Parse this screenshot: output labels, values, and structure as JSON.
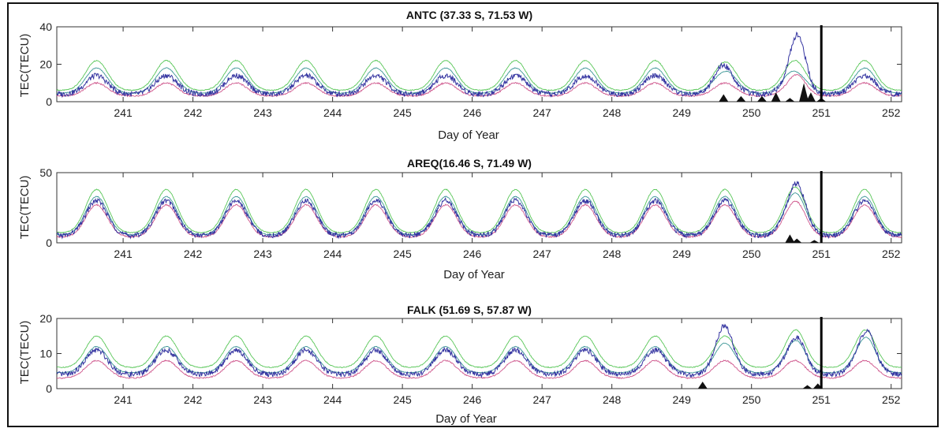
{
  "figure": {
    "panels": [
      {
        "title": "ANTC (37.33 S, 71.53 W)",
        "xlabel": "Day of Year",
        "ylabel": "TEC(TECU)"
      },
      {
        "title": "AREQ(16.46 S, 71.49 W)",
        "xlabel": "Day of Year",
        "ylabel": "TEC(TECU)"
      },
      {
        "title": "FALK (51.69 S, 57.87 W)",
        "xlabel": "Day of Year",
        "ylabel": "TEC(TECU)"
      }
    ]
  },
  "chart_data": [
    {
      "type": "line",
      "title": "ANTC (37.33 S, 71.53 W)",
      "xlabel": "Day of Year",
      "ylabel": "TEC(TECU)",
      "xlim": [
        240.05,
        252.15
      ],
      "ylim": [
        0,
        40
      ],
      "xticks": [
        241,
        242,
        243,
        244,
        245,
        246,
        247,
        248,
        249,
        250,
        251,
        252
      ],
      "yticks": [
        0,
        20,
        40
      ],
      "colors": {
        "green": "#4ec34e",
        "cyan": "#2f8f8f",
        "blue": "#2a2a9c",
        "pink": "#cc4f87"
      },
      "series_shape": {
        "base": 4,
        "green_peak": 22,
        "cyan_peak": 18,
        "blue_peak": 14,
        "pink_peak": 10
      },
      "anomalies": [
        {
          "day": 249.55,
          "blue_peak": 20,
          "green_peak": 21,
          "cyan_peak": 16
        },
        {
          "day": 250.7,
          "blue_peak": 38,
          "green_peak": 22,
          "cyan_peak": 16,
          "pink_peak": 15
        }
      ],
      "filled_bars": [
        {
          "x": 249.6,
          "y": 4
        },
        {
          "x": 249.85,
          "y": 3
        },
        {
          "x": 250.15,
          "y": 3
        },
        {
          "x": 250.35,
          "y": 5
        },
        {
          "x": 250.55,
          "y": 2
        },
        {
          "x": 250.75,
          "y": 10
        },
        {
          "x": 250.85,
          "y": 5
        },
        {
          "x": 251.0,
          "y": 2
        }
      ],
      "event_line": 251.0
    },
    {
      "type": "line",
      "title": "AREQ(16.46 S, 71.49 W)",
      "xlabel": "Day of Year",
      "ylabel": "TEC(TECU)",
      "xlim": [
        240.05,
        252.15
      ],
      "ylim": [
        0,
        50
      ],
      "xticks": [
        241,
        242,
        243,
        244,
        245,
        246,
        247,
        248,
        249,
        250,
        251,
        252
      ],
      "yticks": [
        0,
        50
      ],
      "colors": {
        "green": "#4ec34e",
        "cyan": "#2f8f8f",
        "blue": "#2a2a9c",
        "pink": "#cc4f87"
      },
      "series_shape": {
        "base": 5,
        "green_peak": 38,
        "cyan_peak": 33,
        "blue_peak": 30,
        "pink_peak": 27
      },
      "anomalies": [
        {
          "day": 250.7,
          "blue_peak": 44,
          "green_peak": 40,
          "cyan_peak": 36,
          "pink_peak": 30
        }
      ],
      "filled_bars": [
        {
          "x": 250.55,
          "y": 6
        },
        {
          "x": 250.65,
          "y": 3
        },
        {
          "x": 250.9,
          "y": 2
        }
      ],
      "event_line": 251.0
    },
    {
      "type": "line",
      "title": "FALK (51.69 S, 57.87 W)",
      "xlabel": "Day of Year",
      "ylabel": "TEC(TECU)",
      "xlim": [
        240.05,
        252.15
      ],
      "ylim": [
        0,
        20
      ],
      "xticks": [
        241,
        242,
        243,
        244,
        245,
        246,
        247,
        248,
        249,
        250,
        251,
        252
      ],
      "yticks": [
        0,
        10,
        20
      ],
      "colors": {
        "green": "#4ec34e",
        "cyan": "#2f8f8f",
        "blue": "#2a2a9c",
        "pink": "#cc4f87"
      },
      "series_shape": {
        "base": 4,
        "green_peak": 15,
        "cyan_peak": 12,
        "blue_peak": 11,
        "pink_peak": 8
      },
      "anomalies": [
        {
          "day": 249.6,
          "blue_peak": 18,
          "green_peak": 15,
          "cyan_peak": 13
        },
        {
          "day": 250.7,
          "blue_peak": 15,
          "green_peak": 17,
          "cyan_peak": 14
        },
        {
          "day": 251.7,
          "blue_peak": 17,
          "green_peak": 17,
          "cyan_peak": 15
        }
      ],
      "filled_bars": [
        {
          "x": 249.3,
          "y": 2
        },
        {
          "x": 250.8,
          "y": 1
        },
        {
          "x": 250.95,
          "y": 1.5
        }
      ],
      "event_line": 251.0
    }
  ]
}
